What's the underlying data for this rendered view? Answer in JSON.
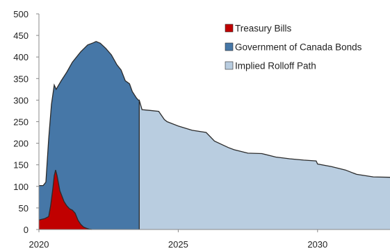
{
  "chart_data": {
    "type": "area",
    "title": "",
    "xlabel": "",
    "ylabel": "",
    "xlim": [
      2020,
      2032.6
    ],
    "ylim": [
      0,
      500
    ],
    "grid": false,
    "legend_position": "top-right",
    "x_ticks": [
      2020,
      2025,
      2030
    ],
    "y_ticks": [
      0,
      50,
      100,
      150,
      200,
      250,
      300,
      350,
      400,
      450,
      500
    ],
    "colors": {
      "treasury_bills": "#c00000",
      "goc_bonds": "#4677a7",
      "rolloff": "#b9cde0",
      "outline": "#2b2b2b",
      "axis": "#888888"
    },
    "legend": [
      {
        "key": "treasury_bills",
        "label": "Treasury Bills"
      },
      {
        "key": "goc_bonds",
        "label": "Government of Canada Bonds"
      },
      {
        "key": "rolloff",
        "label": "Implied Rolloff Path"
      }
    ],
    "series": [
      {
        "key": "treasury_bills",
        "name": "Treasury Bills",
        "points": [
          [
            2020.0,
            22
          ],
          [
            2020.2,
            25
          ],
          [
            2020.35,
            30
          ],
          [
            2020.42,
            55
          ],
          [
            2020.5,
            95
          ],
          [
            2020.55,
            125
          ],
          [
            2020.6,
            138
          ],
          [
            2020.65,
            125
          ],
          [
            2020.75,
            90
          ],
          [
            2020.9,
            65
          ],
          [
            2021.0,
            55
          ],
          [
            2021.1,
            48
          ],
          [
            2021.2,
            45
          ],
          [
            2021.3,
            38
          ],
          [
            2021.4,
            22
          ],
          [
            2021.5,
            12
          ],
          [
            2021.6,
            6
          ],
          [
            2021.7,
            3
          ],
          [
            2021.8,
            1
          ],
          [
            2021.9,
            0
          ]
        ]
      },
      {
        "key": "goc_bonds",
        "name": "Government of Canada Bonds",
        "points": [
          [
            2020.0,
            102
          ],
          [
            2020.15,
            102
          ],
          [
            2020.25,
            110
          ],
          [
            2020.35,
            210
          ],
          [
            2020.45,
            290
          ],
          [
            2020.55,
            335
          ],
          [
            2020.62,
            325
          ],
          [
            2020.8,
            345
          ],
          [
            2021.0,
            365
          ],
          [
            2021.2,
            388
          ],
          [
            2021.5,
            412
          ],
          [
            2021.75,
            428
          ],
          [
            2021.95,
            433
          ],
          [
            2022.05,
            436
          ],
          [
            2022.2,
            432
          ],
          [
            2022.4,
            420
          ],
          [
            2022.6,
            405
          ],
          [
            2022.8,
            382
          ],
          [
            2022.95,
            370
          ],
          [
            2023.1,
            345
          ],
          [
            2023.25,
            338
          ],
          [
            2023.35,
            320
          ],
          [
            2023.5,
            305
          ],
          [
            2023.57,
            300
          ],
          [
            2023.6,
            300
          ]
        ]
      },
      {
        "key": "rolloff",
        "name": "Implied Rolloff Path",
        "points": [
          [
            2023.6,
            300
          ],
          [
            2023.7,
            278
          ],
          [
            2024.0,
            276
          ],
          [
            2024.3,
            274
          ],
          [
            2024.5,
            255
          ],
          [
            2024.6,
            250
          ],
          [
            2025.0,
            240
          ],
          [
            2025.5,
            230
          ],
          [
            2026.0,
            225
          ],
          [
            2026.3,
            205
          ],
          [
            2026.8,
            190
          ],
          [
            2027.0,
            185
          ],
          [
            2027.5,
            177
          ],
          [
            2028.0,
            176
          ],
          [
            2028.5,
            168
          ],
          [
            2029.0,
            164
          ],
          [
            2029.5,
            161
          ],
          [
            2029.95,
            159
          ],
          [
            2030.0,
            152
          ],
          [
            2030.5,
            146
          ],
          [
            2031.0,
            138
          ],
          [
            2031.4,
            128
          ],
          [
            2032.0,
            122
          ],
          [
            2032.6,
            121
          ]
        ]
      }
    ]
  }
}
